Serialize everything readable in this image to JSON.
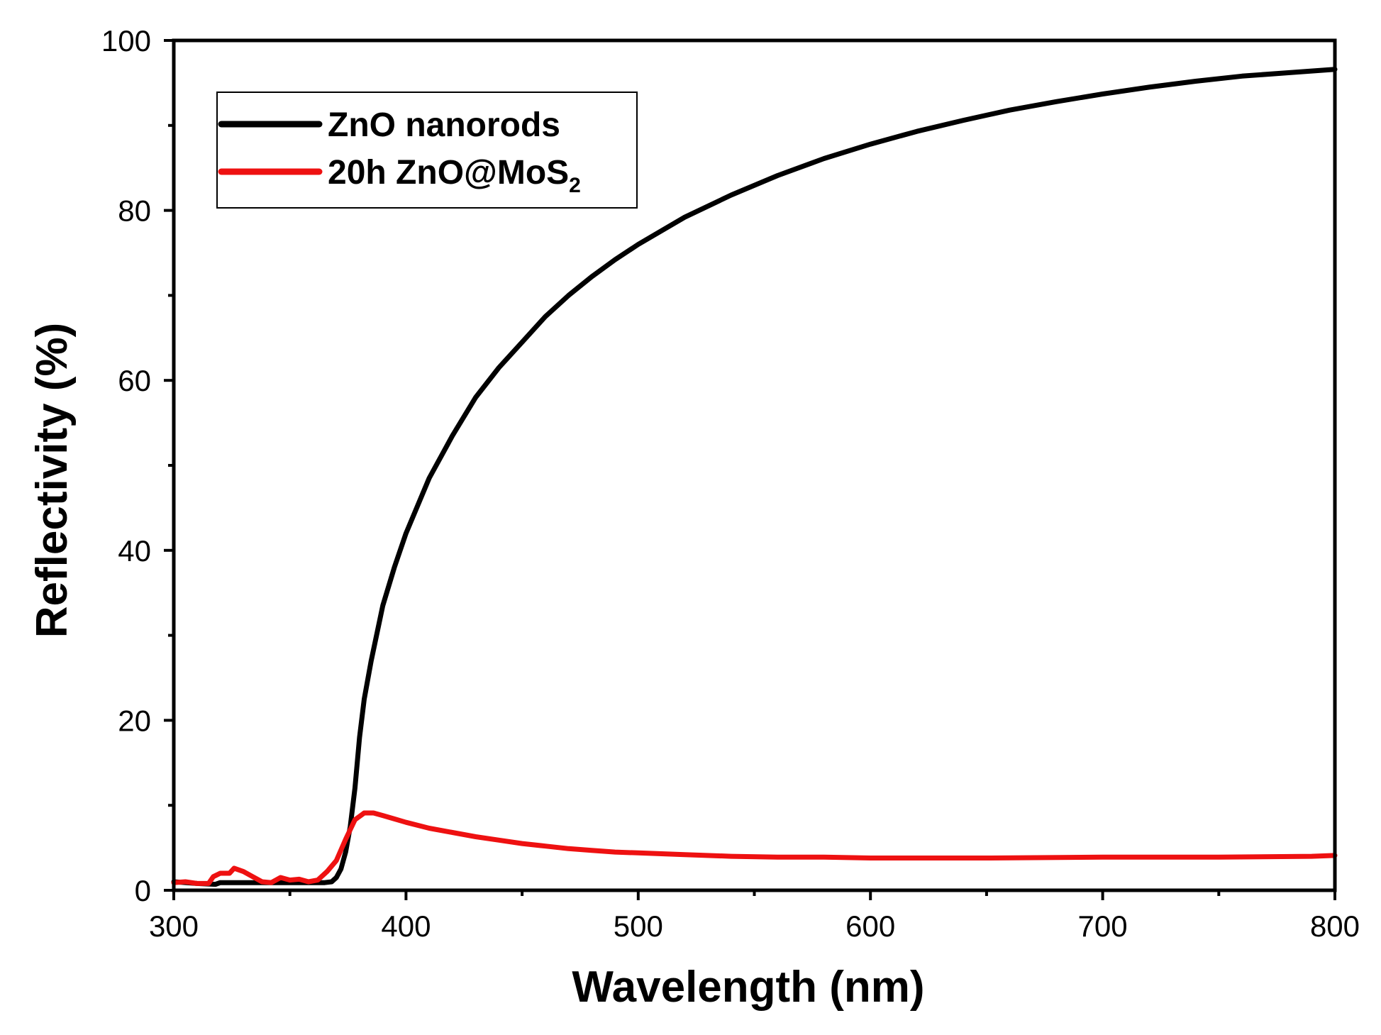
{
  "chart_data": {
    "type": "line",
    "xlabel": "Wavelength (nm)",
    "ylabel": "Reflectivity (%)",
    "xlim": [
      300,
      800
    ],
    "ylim": [
      0,
      100
    ],
    "xticks": [
      300,
      400,
      500,
      600,
      700,
      800
    ],
    "yticks": [
      0,
      20,
      40,
      60,
      80,
      100
    ],
    "x_minor_step": 50,
    "y_minor_step": 10,
    "grid": false,
    "legend_position": "top-left",
    "series": [
      {
        "name": "ZnO nanorods",
        "legend_label": "ZnO nanorods",
        "color": "#000000",
        "points": [
          [
            300,
            1.0
          ],
          [
            310,
            0.8
          ],
          [
            318,
            0.7
          ],
          [
            320,
            0.9
          ],
          [
            330,
            0.9
          ],
          [
            340,
            0.9
          ],
          [
            350,
            0.9
          ],
          [
            360,
            0.9
          ],
          [
            365,
            0.9
          ],
          [
            368,
            1.0
          ],
          [
            370,
            1.5
          ],
          [
            372,
            2.5
          ],
          [
            374,
            4.5
          ],
          [
            376,
            7.5
          ],
          [
            378,
            12
          ],
          [
            380,
            18
          ],
          [
            382,
            22.5
          ],
          [
            385,
            27
          ],
          [
            390,
            33.5
          ],
          [
            395,
            38
          ],
          [
            400,
            42
          ],
          [
            410,
            48.5
          ],
          [
            420,
            53.5
          ],
          [
            430,
            58
          ],
          [
            440,
            61.5
          ],
          [
            450,
            64.5
          ],
          [
            460,
            67.5
          ],
          [
            470,
            70
          ],
          [
            480,
            72.2
          ],
          [
            490,
            74.2
          ],
          [
            500,
            76
          ],
          [
            520,
            79.2
          ],
          [
            540,
            81.8
          ],
          [
            560,
            84.1
          ],
          [
            580,
            86.1
          ],
          [
            600,
            87.8
          ],
          [
            620,
            89.3
          ],
          [
            640,
            90.6
          ],
          [
            660,
            91.8
          ],
          [
            680,
            92.8
          ],
          [
            700,
            93.7
          ],
          [
            720,
            94.5
          ],
          [
            740,
            95.2
          ],
          [
            760,
            95.8
          ],
          [
            780,
            96.2
          ],
          [
            800,
            96.6
          ]
        ]
      },
      {
        "name": "20h ZnO@MoS2",
        "legend_label": "20h ZnO@MoS",
        "legend_subscript": "2",
        "color": "#ee1111",
        "points": [
          [
            300,
            0.9
          ],
          [
            305,
            1.0
          ],
          [
            310,
            0.8
          ],
          [
            315,
            0.8
          ],
          [
            317,
            1.6
          ],
          [
            320,
            2.0
          ],
          [
            324,
            2.0
          ],
          [
            326,
            2.6
          ],
          [
            330,
            2.2
          ],
          [
            334,
            1.6
          ],
          [
            338,
            1.0
          ],
          [
            342,
            0.9
          ],
          [
            346,
            1.5
          ],
          [
            350,
            1.2
          ],
          [
            354,
            1.3
          ],
          [
            358,
            1.0
          ],
          [
            362,
            1.2
          ],
          [
            366,
            2.2
          ],
          [
            370,
            3.5
          ],
          [
            374,
            6.0
          ],
          [
            378,
            8.3
          ],
          [
            382,
            9.1
          ],
          [
            386,
            9.1
          ],
          [
            390,
            8.8
          ],
          [
            395,
            8.4
          ],
          [
            400,
            8.0
          ],
          [
            410,
            7.3
          ],
          [
            420,
            6.8
          ],
          [
            430,
            6.3
          ],
          [
            440,
            5.9
          ],
          [
            450,
            5.5
          ],
          [
            460,
            5.2
          ],
          [
            470,
            4.9
          ],
          [
            480,
            4.7
          ],
          [
            490,
            4.5
          ],
          [
            500,
            4.4
          ],
          [
            520,
            4.2
          ],
          [
            540,
            4.0
          ],
          [
            560,
            3.9
          ],
          [
            580,
            3.9
          ],
          [
            600,
            3.8
          ],
          [
            650,
            3.8
          ],
          [
            700,
            3.9
          ],
          [
            750,
            3.9
          ],
          [
            790,
            4.0
          ],
          [
            800,
            4.1
          ]
        ]
      }
    ]
  }
}
